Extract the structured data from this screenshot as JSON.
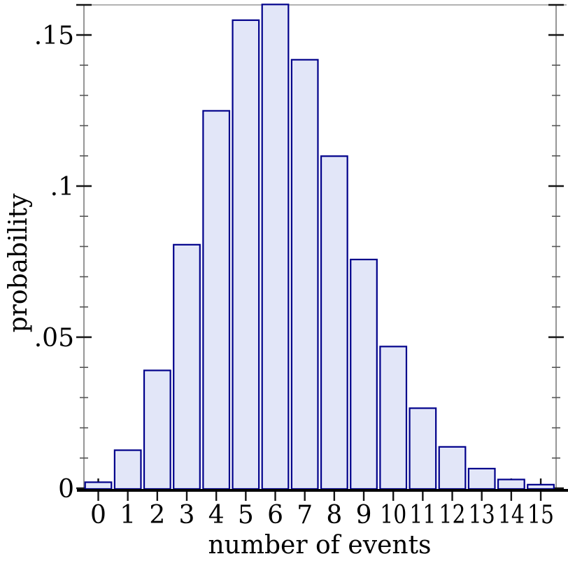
{
  "chart_data": {
    "type": "bar",
    "title": "",
    "xlabel": "number of events",
    "ylabel": "probability",
    "categories": [
      0,
      1,
      2,
      3,
      4,
      5,
      6,
      7,
      8,
      9,
      10,
      11,
      12,
      13,
      14,
      15
    ],
    "values": [
      0.002,
      0.0126,
      0.039,
      0.0806,
      0.1249,
      0.1549,
      0.1601,
      0.1418,
      0.1099,
      0.0757,
      0.0469,
      0.0265,
      0.0137,
      0.0065,
      0.0029,
      0.0012
    ],
    "y_ticks": [
      {
        "value": 0,
        "label": "0"
      },
      {
        "value": 0.05,
        "label": ".05"
      },
      {
        "value": 0.1,
        "label": ".1"
      },
      {
        "value": 0.15,
        "label": ".15"
      }
    ],
    "y_minor_tick_step": 0.01,
    "ylim": [
      0,
      0.16
    ],
    "grid": false,
    "legend": null,
    "ticks_mirrored_right_axis": true,
    "colors": {
      "bar_fill": "#e2e6f8",
      "bar_border": "#00008b",
      "spine": "#8a8a8a",
      "tick": "#141414",
      "bottom_axis": "#000000",
      "text": "#000000",
      "background": "#ffffff"
    }
  }
}
